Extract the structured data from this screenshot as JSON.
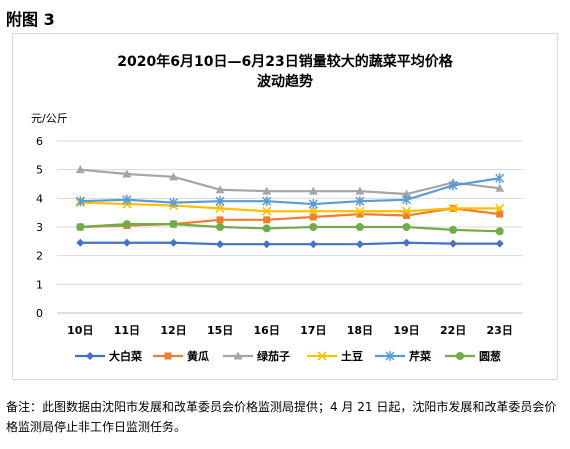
{
  "figure_label": "附图 3",
  "note": "备注：此图数据由沈阳市发展和改革委员会价格监测局提供；4 月 21 日起，沈阳市发展和改革委员会价格监测局停止非工作日监测任务。",
  "chart_data": {
    "type": "line",
    "title": "2020年6月10日—6月23日销量较大的蔬菜平均价格",
    "subtitle": "波动趋势",
    "ylabel": "元/公斤",
    "ylim": [
      0,
      6
    ],
    "yticks": [
      0,
      1,
      2,
      3,
      4,
      5,
      6
    ],
    "grid": true,
    "legend": "bottom",
    "categories": [
      "10日",
      "11日",
      "12日",
      "15日",
      "16日",
      "17日",
      "18日",
      "19日",
      "22日",
      "23日"
    ],
    "series": [
      {
        "name": "大白菜",
        "color": "#4472c4",
        "marker": "diamond",
        "values": [
          2.45,
          2.45,
          2.45,
          2.4,
          2.4,
          2.4,
          2.4,
          2.45,
          2.42,
          2.42
        ]
      },
      {
        "name": "黄瓜",
        "color": "#ed7d31",
        "marker": "square",
        "values": [
          3.0,
          3.05,
          3.1,
          3.25,
          3.25,
          3.35,
          3.45,
          3.4,
          3.65,
          3.45
        ]
      },
      {
        "name": "绿茄子",
        "color": "#a5a5a5",
        "marker": "triangle",
        "values": [
          5.0,
          4.85,
          4.75,
          4.3,
          4.25,
          4.25,
          4.25,
          4.15,
          4.55,
          4.35
        ]
      },
      {
        "name": "土豆",
        "color": "#ffc000",
        "marker": "x",
        "values": [
          3.85,
          3.8,
          3.75,
          3.65,
          3.55,
          3.55,
          3.55,
          3.55,
          3.65,
          3.65
        ]
      },
      {
        "name": "芹菜",
        "color": "#5b9bd5",
        "marker": "star",
        "values": [
          3.9,
          3.95,
          3.85,
          3.9,
          3.9,
          3.8,
          3.9,
          3.95,
          4.45,
          4.7
        ]
      },
      {
        "name": "圆葱",
        "color": "#70ad47",
        "marker": "circle",
        "values": [
          3.0,
          3.1,
          3.1,
          3.0,
          2.95,
          3.0,
          3.0,
          3.0,
          2.9,
          2.85
        ]
      }
    ]
  }
}
